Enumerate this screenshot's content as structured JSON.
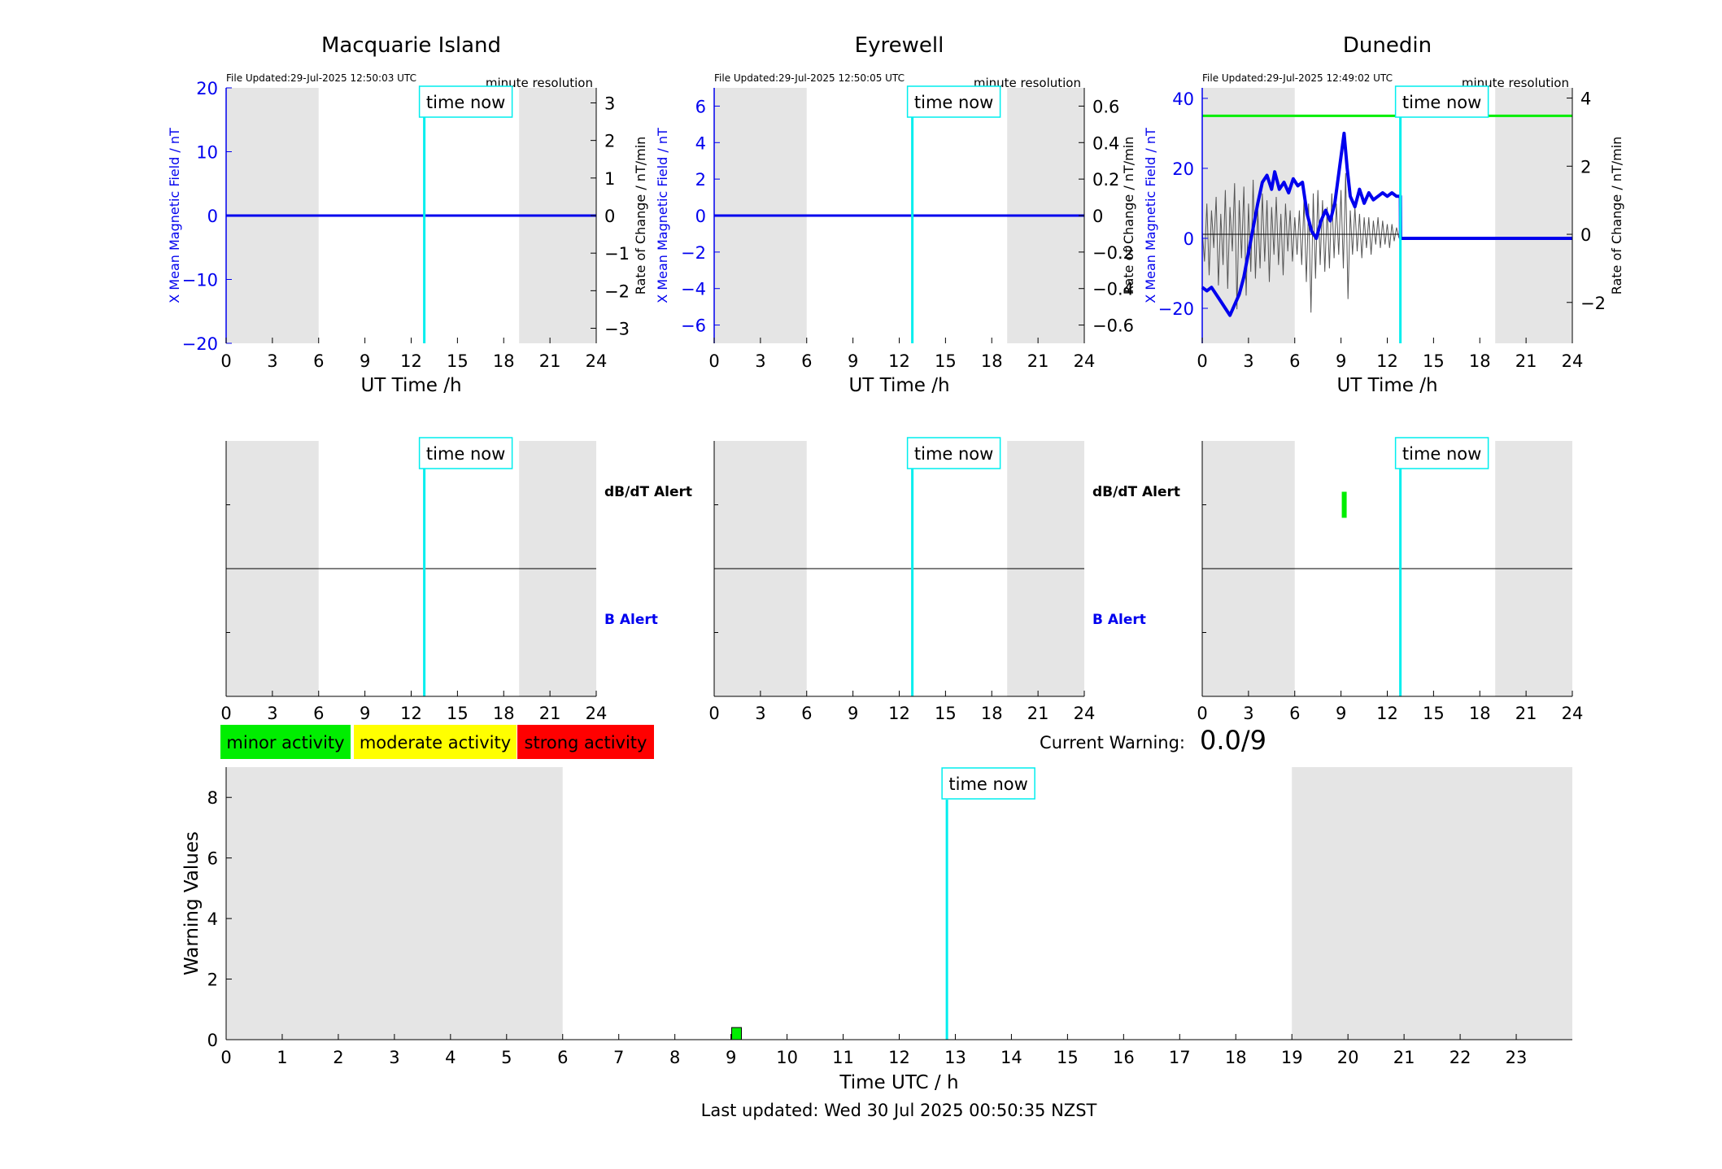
{
  "chart_data": {
    "type": "line",
    "stations": [
      {
        "title": "Macquarie Island",
        "file_updated": "File Updated:29-Jul-2025 12:50:03 UTC",
        "resolution_label": "minute resolution",
        "ylabel_left": "X Mean Magnetic Field / nT",
        "ylabel_right": "Rate of Change / nT/min",
        "ylim": [
          -20,
          20
        ],
        "yticks": [
          -20,
          -10,
          0,
          10,
          20
        ],
        "y2lim": [
          -3.4,
          3.4
        ],
        "y2ticks": [
          -3,
          -2,
          -1,
          0,
          1,
          2,
          3
        ],
        "night_bands": [
          [
            0,
            6
          ],
          [
            19,
            24
          ]
        ],
        "alert_ylim": [
          -1,
          1
        ],
        "series": [
          {
            "values": [
              [
                0,
                0
              ],
              [
                24,
                0
              ]
            ]
          }
        ],
        "threshold": null,
        "dbdt_alerts": []
      },
      {
        "title": "Eyrewell",
        "file_updated": "File Updated:29-Jul-2025 12:50:05 UTC",
        "resolution_label": "minute resolution",
        "ylabel_left": "X Mean Magnetic Field / nT",
        "ylabel_right": "Rate of Change / nT/min",
        "ylim": [
          -7,
          7
        ],
        "yticks": [
          -6,
          -4,
          -2,
          0,
          2,
          4,
          6
        ],
        "y2lim": [
          -0.7,
          0.7
        ],
        "y2ticks": [
          -0.6,
          -0.4,
          -0.2,
          0,
          0.2,
          0.4,
          0.6
        ],
        "night_bands": [
          [
            0,
            6
          ],
          [
            19,
            24
          ]
        ],
        "alert_ylim": [
          -1,
          1
        ],
        "series": [
          {
            "values": [
              [
                0,
                0
              ],
              [
                24,
                0
              ]
            ]
          }
        ],
        "threshold": null,
        "dbdt_alerts": []
      },
      {
        "title": "Dunedin",
        "file_updated": "File Updated:29-Jul-2025 12:49:02 UTC",
        "resolution_label": "minute resolution",
        "ylabel_left": "X Mean Magnetic Field / nT",
        "ylabel_right": "Rate of Change / nT/min",
        "ylim": [
          -30,
          43
        ],
        "yticks": [
          -20,
          0,
          20,
          40
        ],
        "y2lim": [
          -3.2,
          4.3
        ],
        "y2ticks": [
          -2,
          0,
          2,
          4
        ],
        "night_bands": [
          [
            0,
            6
          ],
          [
            19,
            24
          ]
        ],
        "alert_ylim": [
          -1,
          1
        ],
        "series": [
          {
            "values": [
              [
                0,
                -14
              ],
              [
                0.3,
                -15
              ],
              [
                0.6,
                -14
              ],
              [
                0.9,
                -16
              ],
              [
                1.2,
                -18
              ],
              [
                1.5,
                -20
              ],
              [
                1.8,
                -22
              ],
              [
                2.1,
                -19
              ],
              [
                2.4,
                -16
              ],
              [
                2.7,
                -11
              ],
              [
                3.0,
                -4
              ],
              [
                3.3,
                3
              ],
              [
                3.6,
                10
              ],
              [
                3.9,
                16
              ],
              [
                4.2,
                18
              ],
              [
                4.5,
                14
              ],
              [
                4.7,
                19
              ],
              [
                5.0,
                14
              ],
              [
                5.3,
                16
              ],
              [
                5.6,
                13
              ],
              [
                5.9,
                17
              ],
              [
                6.2,
                15
              ],
              [
                6.5,
                16
              ],
              [
                6.8,
                7
              ],
              [
                7.1,
                2
              ],
              [
                7.4,
                0
              ],
              [
                7.7,
                5
              ],
              [
                8.0,
                8
              ],
              [
                8.3,
                5
              ],
              [
                8.6,
                10
              ],
              [
                8.9,
                20
              ],
              [
                9.2,
                30
              ],
              [
                9.4,
                20
              ],
              [
                9.6,
                12
              ],
              [
                9.9,
                9
              ],
              [
                10.2,
                14
              ],
              [
                10.5,
                10
              ],
              [
                10.8,
                13
              ],
              [
                11.1,
                11
              ],
              [
                11.4,
                12
              ],
              [
                11.7,
                13
              ],
              [
                12.0,
                12
              ],
              [
                12.3,
                13
              ],
              [
                12.6,
                12
              ],
              [
                12.85,
                12
              ],
              [
                12.86,
                0
              ],
              [
                24,
                0
              ]
            ]
          }
        ],
        "rate_series": [
          [
            0,
            0.1
          ],
          [
            0.15,
            -0.8
          ],
          [
            0.3,
            0.9
          ],
          [
            0.45,
            -1.2
          ],
          [
            0.6,
            0.7
          ],
          [
            0.75,
            -0.4
          ],
          [
            0.9,
            1.1
          ],
          [
            1.05,
            -1.5
          ],
          [
            1.2,
            0.6
          ],
          [
            1.35,
            -0.9
          ],
          [
            1.5,
            1.3
          ],
          [
            1.65,
            -1.6
          ],
          [
            1.8,
            0.8
          ],
          [
            1.95,
            -0.5
          ],
          [
            2.1,
            1.5
          ],
          [
            2.25,
            -2.2
          ],
          [
            2.4,
            1.0
          ],
          [
            2.55,
            -0.7
          ],
          [
            2.7,
            1.4
          ],
          [
            2.85,
            -1.8
          ],
          [
            3.0,
            0.9
          ],
          [
            3.15,
            -1.1
          ],
          [
            3.3,
            1.6
          ],
          [
            3.45,
            -1.3
          ],
          [
            3.6,
            0.7
          ],
          [
            3.75,
            -1.0
          ],
          [
            3.9,
            1.2
          ],
          [
            4.05,
            -0.8
          ],
          [
            4.2,
            1.0
          ],
          [
            4.35,
            -1.4
          ],
          [
            4.5,
            0.8
          ],
          [
            4.65,
            -0.6
          ],
          [
            4.8,
            1.1
          ],
          [
            4.95,
            -0.9
          ],
          [
            5.1,
            0.6
          ],
          [
            5.25,
            -1.2
          ],
          [
            5.4,
            0.9
          ],
          [
            5.55,
            -0.5
          ],
          [
            5.7,
            0.7
          ],
          [
            5.85,
            -0.8
          ],
          [
            6.0,
            0.5
          ],
          [
            6.15,
            -0.6
          ],
          [
            6.3,
            0.7
          ],
          [
            6.45,
            -0.9
          ],
          [
            6.6,
            1.0
          ],
          [
            6.75,
            -1.4
          ],
          [
            6.9,
            0.9
          ],
          [
            7.05,
            -2.3
          ],
          [
            7.2,
            1.2
          ],
          [
            7.35,
            -1.3
          ],
          [
            7.5,
            1.3
          ],
          [
            7.65,
            -0.9
          ],
          [
            7.8,
            1.0
          ],
          [
            7.95,
            -1.1
          ],
          [
            8.1,
            0.8
          ],
          [
            8.25,
            -1.0
          ],
          [
            8.4,
            1.2
          ],
          [
            8.55,
            -0.7
          ],
          [
            8.7,
            0.9
          ],
          [
            8.85,
            -0.6
          ],
          [
            9.0,
            1.3
          ],
          [
            9.15,
            -1.0
          ],
          [
            9.3,
            1.8
          ],
          [
            9.45,
            -1.9
          ],
          [
            9.6,
            0.7
          ],
          [
            9.75,
            -0.6
          ],
          [
            9.9,
            0.8
          ],
          [
            10.05,
            -0.5
          ],
          [
            10.2,
            0.6
          ],
          [
            10.35,
            -0.7
          ],
          [
            10.5,
            0.5
          ],
          [
            10.65,
            -0.4
          ],
          [
            10.8,
            0.5
          ],
          [
            10.95,
            -0.6
          ],
          [
            11.1,
            0.4
          ],
          [
            11.25,
            -0.3
          ],
          [
            11.4,
            0.5
          ],
          [
            11.55,
            -0.4
          ],
          [
            11.7,
            0.4
          ],
          [
            11.85,
            -0.3
          ],
          [
            12.0,
            0.3
          ],
          [
            12.15,
            -0.4
          ],
          [
            12.3,
            0.3
          ],
          [
            12.45,
            -0.2
          ],
          [
            12.6,
            0.2
          ],
          [
            12.75,
            -0.1
          ]
        ],
        "threshold": 35,
        "dbdt_alerts": [
          [
            9.05,
            9.2
          ]
        ]
      }
    ],
    "time_now": 12.85,
    "time_now_label": "time now",
    "time_xlabel": "UT Time /h",
    "time_xticks": [
      0,
      3,
      6,
      9,
      12,
      15,
      18,
      21,
      24
    ],
    "alert_labels": {
      "dbdt": "dB/dT Alert",
      "b": "B Alert"
    },
    "legend": [
      "minor activity",
      "moderate activity",
      "strong activity"
    ],
    "current_warning_label": "Current Warning:",
    "current_warning_value": "0.0/9",
    "warning": {
      "ylabel": "Warning Values",
      "xlabel": "Time UTC / h",
      "ylim": [
        0,
        9
      ],
      "yticks": [
        0,
        2,
        4,
        6,
        8
      ],
      "xlim": [
        0,
        24
      ],
      "xticks": [
        0,
        1,
        2,
        3,
        4,
        5,
        6,
        7,
        8,
        9,
        10,
        11,
        12,
        13,
        14,
        15,
        16,
        17,
        18,
        19,
        20,
        21,
        22,
        23
      ],
      "night_bands": [
        [
          0,
          6
        ],
        [
          19,
          24
        ]
      ],
      "bars": [
        {
          "x": 9.1,
          "value": 0.4,
          "level": "minor activity"
        }
      ]
    },
    "footer": "Last updated: Wed 30 Jul 2025 00:50:35 NZST"
  },
  "colors": {
    "field_line": "#0000ee",
    "rate_line": "#555555",
    "time_now": "#00eeee",
    "night_band": "#e5e5e5",
    "threshold": "#00ee00",
    "minor": "#00ee00",
    "moderate": "#ffff00",
    "strong": "#ff0000",
    "b_alert_label": "#0000ee"
  }
}
